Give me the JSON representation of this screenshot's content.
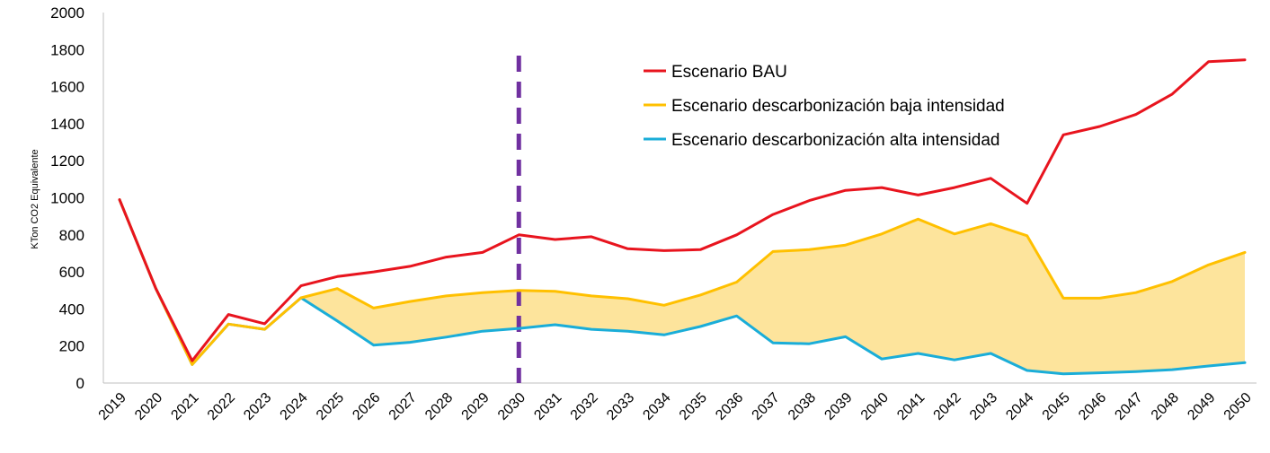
{
  "chart_data": {
    "type": "line",
    "title": "",
    "xlabel": "",
    "ylabel": "KTon CO2 Equivalente",
    "ylim": [
      0,
      2000
    ],
    "yticks": [
      "0",
      "200",
      "400",
      "600",
      "800",
      "1000",
      "1200",
      "1400",
      "1600",
      "1800",
      "2000"
    ],
    "categories": [
      "2019",
      "2020",
      "2021",
      "2022",
      "2023",
      "2024",
      "2025",
      "2026",
      "2027",
      "2028",
      "2029",
      "2030",
      "2031",
      "2032",
      "2033",
      "2034",
      "2035",
      "2036",
      "2037",
      "2038",
      "2039",
      "2040",
      "2041",
      "2042",
      "2043",
      "2044",
      "2045",
      "2046",
      "2047",
      "2048",
      "2049",
      "2050"
    ],
    "grid": false,
    "legend_position": "top-right",
    "series": [
      {
        "name": "Escenario BAU",
        "color": "#e8141e",
        "values": [
          990,
          510,
          120,
          370,
          320,
          525,
          575,
          600,
          630,
          680,
          705,
          800,
          775,
          790,
          725,
          715,
          720,
          800,
          910,
          985,
          1040,
          1055,
          1015,
          1055,
          1105,
          970,
          1340,
          1385,
          1450,
          1560,
          1735,
          1745
        ]
      },
      {
        "name": "Escenario descarbonización baja intensidad",
        "color": "#ffc000",
        "values": [
          990,
          510,
          100,
          318,
          290,
          460,
          510,
          405,
          440,
          470,
          488,
          500,
          495,
          470,
          455,
          420,
          475,
          545,
          710,
          720,
          745,
          805,
          885,
          805,
          860,
          795,
          458,
          458,
          488,
          548,
          638,
          705
        ]
      },
      {
        "name": "Escenario descarbonización alta intensidad",
        "color": "#1aadd8",
        "values": [
          990,
          510,
          100,
          318,
          290,
          460,
          335,
          205,
          220,
          248,
          280,
          295,
          315,
          290,
          280,
          260,
          305,
          362,
          217,
          212,
          250,
          130,
          160,
          125,
          160,
          68,
          50,
          55,
          62,
          72,
          92,
          110
        ]
      }
    ],
    "band_fill_color": "#fde49c",
    "marker_line": {
      "category": "2030",
      "color": "#7030a0",
      "style": "dashed"
    }
  }
}
